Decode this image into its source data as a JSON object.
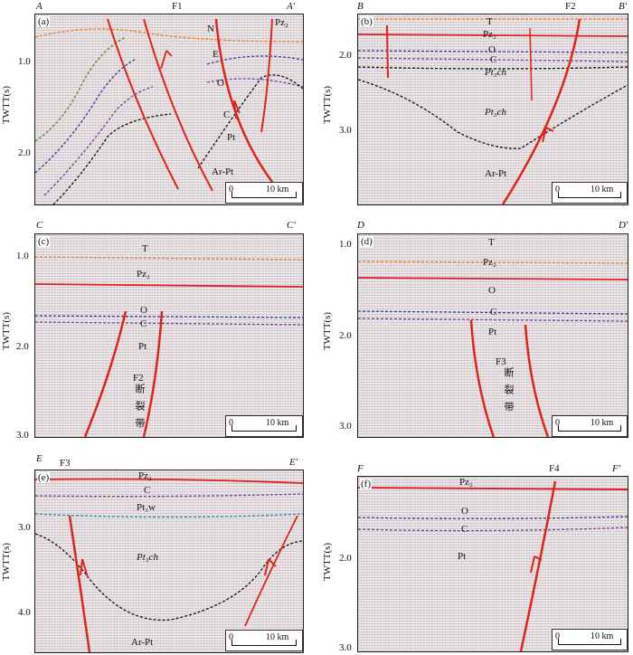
{
  "axis_label": "TWTT(s)",
  "scale": {
    "zero": "0",
    "len": "10 km"
  },
  "panels": {
    "a": {
      "tag": "(a)",
      "left": "A",
      "right": "A'",
      "fault": "F1",
      "ticks": [
        "1.0",
        "2.0"
      ],
      "units": [
        "Pz₂",
        "N",
        "E",
        "O",
        "C",
        "Pt",
        "Ar-Pt"
      ]
    },
    "b": {
      "tag": "(b)",
      "left": "B",
      "right": "B'",
      "fault": "F2",
      "ticks": [
        "2.0",
        "3.0"
      ],
      "units": [
        "T",
        "Pz₂",
        "O",
        "C",
        "Pt₃ch",
        "Pt₃ch",
        "Ar-Pt"
      ]
    },
    "c": {
      "tag": "(c)",
      "left": "C",
      "right": "C'",
      "ticks": [
        "1.0",
        "2.0",
        "3.0"
      ],
      "units": [
        "T",
        "Pz₂",
        "O",
        "C",
        "Pt"
      ],
      "zone_label": "F2",
      "zone_text": "断裂带"
    },
    "d": {
      "tag": "(d)",
      "left": "D",
      "right": "D'",
      "ticks": [
        "1.0",
        "2.0",
        "3.0"
      ],
      "units": [
        "T",
        "Pz₂",
        "O",
        "C",
        "Pt"
      ],
      "zone_label": "F3",
      "zone_text": "断裂带"
    },
    "e": {
      "tag": "(e)",
      "left": "E",
      "right": "E'",
      "fault": "F3",
      "ticks": [
        "3.0",
        "4.0"
      ],
      "units": [
        "Pz₂",
        "C",
        "Pt₃w",
        "Pt₃ch",
        "Ar-Pt"
      ]
    },
    "f": {
      "tag": "(f)",
      "left": "F",
      "right": "F'",
      "fault": "F4",
      "ticks": [
        "2.0",
        "3.0"
      ],
      "units": [
        "Pz₂",
        "O",
        "C",
        "Pt"
      ]
    }
  },
  "colors": {
    "fault": "#e0241b",
    "base_pz": "#2b3f9e",
    "base_c": "#7a3fa0",
    "base_pt": "#111111",
    "top_t": "#f07a1c"
  }
}
